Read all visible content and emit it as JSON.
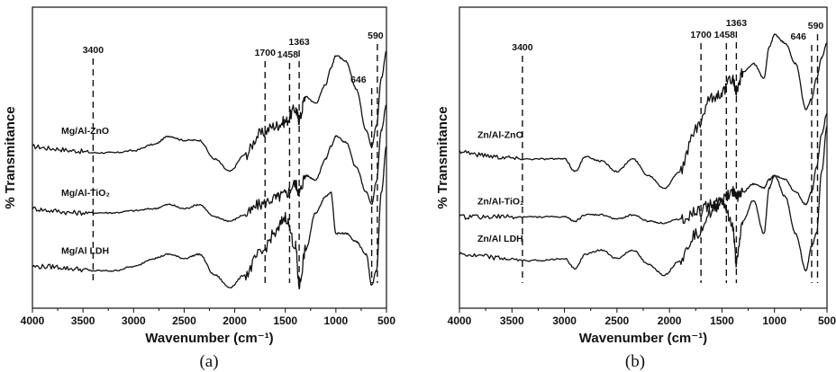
{
  "figure": {
    "ylabel_main": "% Transmitance"
  },
  "chart_data": [
    {
      "type": "line",
      "caption": "(a)",
      "xlabel": "Wavenumber (cm⁻¹)",
      "ylabel": "% Transmitance",
      "xlim": [
        4000,
        500
      ],
      "x_reversed": true,
      "xticks": [
        "4000",
        "3500",
        "3000",
        "2500",
        "2000",
        "1500",
        "1000",
        "500"
      ],
      "y_ticks_shown": false,
      "grid": false,
      "peak_markers": [
        {
          "x": 3400,
          "label": "3400"
        },
        {
          "x": 1700,
          "label": "1700"
        },
        {
          "x": 1458,
          "label": "1458"
        },
        {
          "x": 1363,
          "label": "1363"
        },
        {
          "x": 646,
          "label": "646"
        },
        {
          "x": 590,
          "label": "590"
        }
      ],
      "series": [
        {
          "name": "Mg/Al-ZnO",
          "offset": 0.72,
          "peaks": [
            [
              2930,
              0.03,
              25
            ],
            [
              2350,
              -0.05,
              20
            ],
            [
              1500,
              0.05,
              150
            ],
            [
              1363,
              0.1,
              15
            ],
            [
              1100,
              -0.08,
              80
            ],
            [
              700,
              0.1,
              60
            ],
            [
              590,
              0.12,
              30
            ]
          ],
          "x": [
            4000,
            3800,
            3600,
            3400,
            3200,
            3000,
            2800,
            2650,
            2500,
            2350,
            2200,
            2050,
            1900,
            1750,
            1600,
            1500,
            1400,
            1363,
            1300,
            1200,
            1100,
            1050,
            1000,
            900,
            800,
            700,
            646,
            600,
            550,
            500
          ],
          "y": [
            0.72,
            0.71,
            0.7,
            0.69,
            0.69,
            0.7,
            0.73,
            0.77,
            0.75,
            0.75,
            0.66,
            0.6,
            0.68,
            0.78,
            0.82,
            0.84,
            0.9,
            0.85,
            0.96,
            0.93,
            1.02,
            1.1,
            1.16,
            1.13,
            1.0,
            0.8,
            0.72,
            0.82,
            1.05,
            1.18
          ]
        },
        {
          "name": "Mg/Al-TiO₂",
          "offset": 0.42,
          "x": [
            4000,
            3800,
            3600,
            3400,
            3200,
            3000,
            2800,
            2650,
            2500,
            2350,
            2200,
            2050,
            1900,
            1750,
            1600,
            1500,
            1400,
            1363,
            1300,
            1200,
            1100,
            1050,
            1000,
            900,
            800,
            700,
            646,
            600,
            550,
            500
          ],
          "y": [
            0.42,
            0.41,
            0.4,
            0.4,
            0.4,
            0.41,
            0.42,
            0.44,
            0.42,
            0.44,
            0.38,
            0.36,
            0.39,
            0.44,
            0.47,
            0.49,
            0.54,
            0.5,
            0.58,
            0.56,
            0.66,
            0.72,
            0.77,
            0.74,
            0.62,
            0.5,
            0.44,
            0.55,
            0.8,
            0.92
          ]
        },
        {
          "name": "Mg/Al LDH",
          "offset": 0.12,
          "x": [
            4000,
            3800,
            3600,
            3400,
            3200,
            3000,
            2800,
            2650,
            2500,
            2350,
            2200,
            2050,
            1900,
            1750,
            1600,
            1500,
            1400,
            1363,
            1300,
            1200,
            1100,
            1050,
            1000,
            900,
            800,
            700,
            646,
            600,
            550,
            500
          ],
          "y": [
            0.14,
            0.14,
            0.13,
            0.12,
            0.12,
            0.14,
            0.18,
            0.2,
            0.18,
            0.2,
            0.1,
            0.04,
            0.1,
            0.2,
            0.3,
            0.38,
            0.24,
            0.05,
            0.22,
            0.4,
            0.48,
            0.5,
            0.3,
            0.3,
            0.26,
            0.2,
            0.05,
            0.12,
            0.5,
            0.72
          ]
        }
      ]
    },
    {
      "type": "line",
      "caption": "(b)",
      "xlabel": "Wavenumber (cm⁻¹)",
      "ylabel": "% Transmitance",
      "xlim": [
        4000,
        500
      ],
      "x_reversed": true,
      "xticks": [
        "4000",
        "3500",
        "3000",
        "2500",
        "2000",
        "1500",
        "1000",
        "500"
      ],
      "y_ticks_shown": false,
      "grid": false,
      "peak_markers": [
        {
          "x": 3400,
          "label": "3400"
        },
        {
          "x": 1700,
          "label": "1700"
        },
        {
          "x": 1458,
          "label": "1458"
        },
        {
          "x": 1363,
          "label": "1363"
        },
        {
          "x": 646,
          "label": "646"
        },
        {
          "x": 590,
          "label": "590"
        }
      ],
      "series": [
        {
          "name": "Zn/Al-ZnO",
          "x": [
            4000,
            3800,
            3600,
            3400,
            3200,
            3000,
            2900,
            2800,
            2650,
            2500,
            2350,
            2200,
            2050,
            1900,
            1750,
            1600,
            1500,
            1400,
            1363,
            1300,
            1200,
            1100,
            1050,
            1000,
            900,
            800,
            700,
            646,
            600,
            550,
            500
          ],
          "y": [
            0.7,
            0.68,
            0.67,
            0.66,
            0.66,
            0.66,
            0.6,
            0.67,
            0.65,
            0.6,
            0.66,
            0.58,
            0.52,
            0.6,
            0.8,
            0.95,
            0.98,
            1.05,
            0.98,
            1.08,
            1.12,
            1.05,
            1.2,
            1.26,
            1.22,
            1.12,
            0.9,
            0.95,
            1.05,
            1.15,
            1.22
          ]
        },
        {
          "name": "Zn/Al-TiO₂",
          "x": [
            4000,
            3800,
            3600,
            3400,
            3200,
            3000,
            2900,
            2800,
            2650,
            2500,
            2350,
            2200,
            2050,
            1900,
            1750,
            1600,
            1500,
            1400,
            1363,
            1300,
            1200,
            1100,
            1050,
            1000,
            900,
            800,
            700,
            646,
            600,
            550,
            500
          ],
          "y": [
            0.38,
            0.38,
            0.38,
            0.38,
            0.38,
            0.38,
            0.36,
            0.39,
            0.39,
            0.37,
            0.39,
            0.36,
            0.35,
            0.37,
            0.4,
            0.44,
            0.46,
            0.5,
            0.48,
            0.5,
            0.54,
            0.52,
            0.56,
            0.58,
            0.56,
            0.5,
            0.44,
            0.5,
            0.62,
            0.78,
            0.88
          ]
        },
        {
          "name": "Zn/Al LDH",
          "x": [
            4000,
            3800,
            3600,
            3400,
            3200,
            3000,
            2900,
            2800,
            2650,
            2500,
            2350,
            2200,
            2050,
            1900,
            1750,
            1600,
            1500,
            1400,
            1363,
            1300,
            1200,
            1100,
            1050,
            1000,
            900,
            800,
            700,
            646,
            600,
            550,
            500
          ],
          "y": [
            0.2,
            0.19,
            0.18,
            0.17,
            0.17,
            0.18,
            0.13,
            0.2,
            0.22,
            0.18,
            0.22,
            0.15,
            0.1,
            0.17,
            0.3,
            0.4,
            0.46,
            0.34,
            0.16,
            0.36,
            0.46,
            0.3,
            0.52,
            0.58,
            0.48,
            0.3,
            0.12,
            0.24,
            0.3,
            0.6,
            0.82
          ]
        }
      ]
    }
  ]
}
